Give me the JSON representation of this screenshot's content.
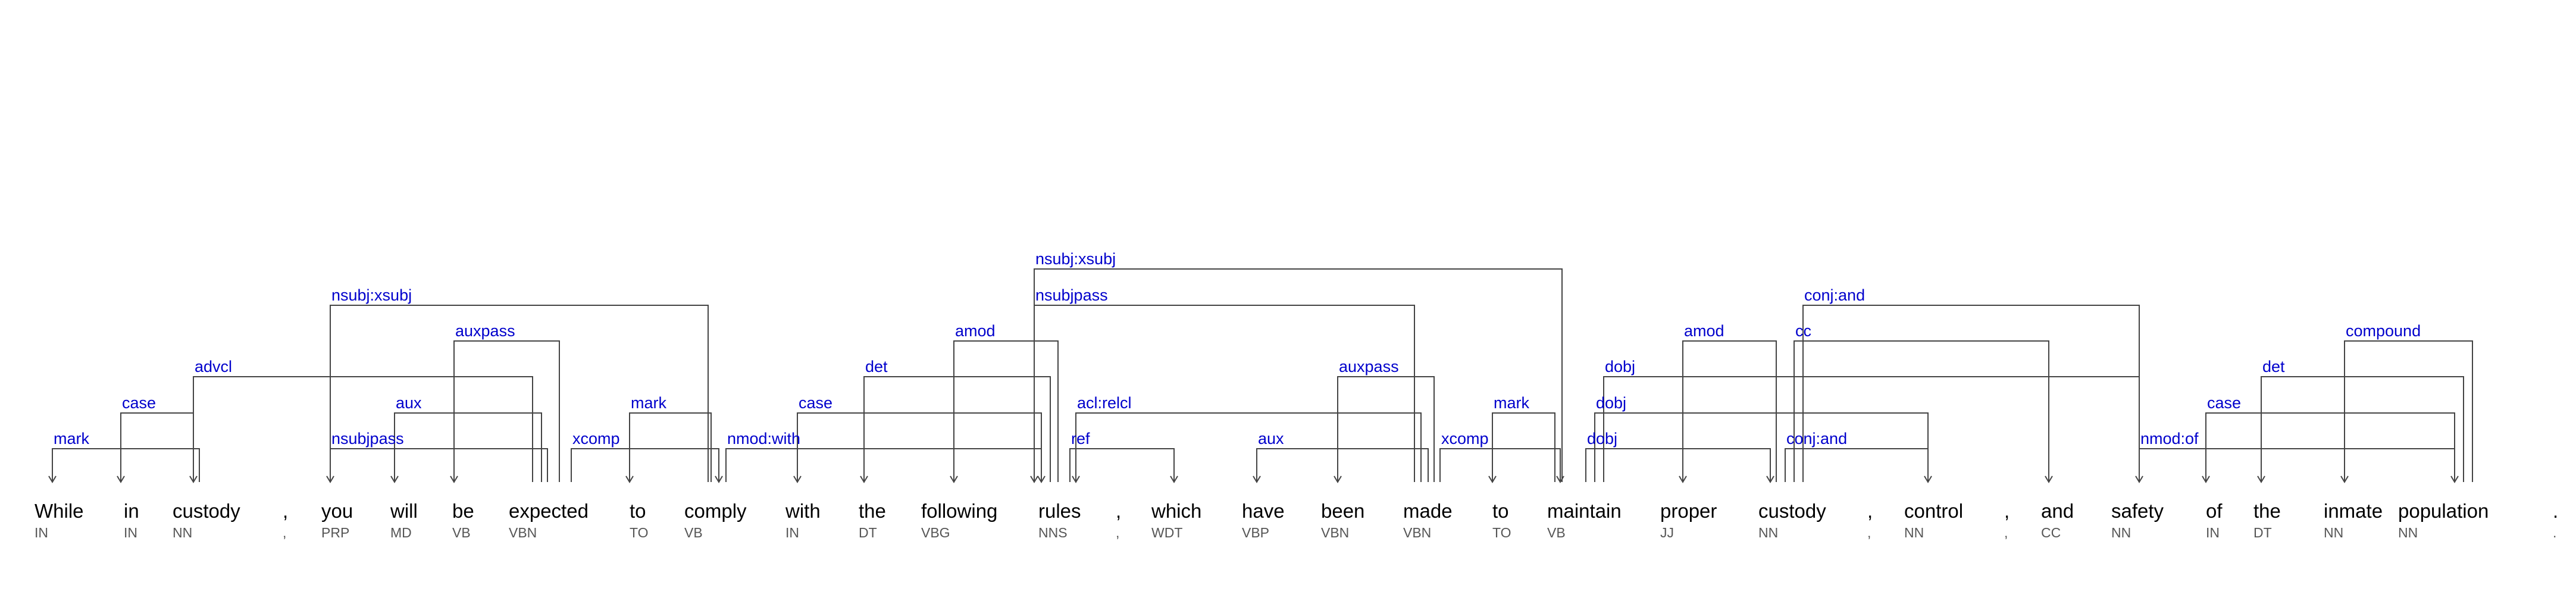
{
  "tokens": [
    {
      "word": "While",
      "tag": "IN"
    },
    {
      "word": "in",
      "tag": "IN"
    },
    {
      "word": "custody",
      "tag": "NN"
    },
    {
      "word": ",",
      "tag": ","
    },
    {
      "word": "you",
      "tag": "PRP"
    },
    {
      "word": "will",
      "tag": "MD"
    },
    {
      "word": "be",
      "tag": "VB"
    },
    {
      "word": "expected",
      "tag": "VBN"
    },
    {
      "word": "to",
      "tag": "TO"
    },
    {
      "word": "comply",
      "tag": "VB"
    },
    {
      "word": "with",
      "tag": "IN"
    },
    {
      "word": "the",
      "tag": "DT"
    },
    {
      "word": "following",
      "tag": "VBG"
    },
    {
      "word": "rules",
      "tag": "NNS"
    },
    {
      "word": ",",
      "tag": ","
    },
    {
      "word": "which",
      "tag": "WDT"
    },
    {
      "word": "have",
      "tag": "VBP"
    },
    {
      "word": "been",
      "tag": "VBN"
    },
    {
      "word": "made",
      "tag": "VBN"
    },
    {
      "word": "to",
      "tag": "TO"
    },
    {
      "word": "maintain",
      "tag": "VB"
    },
    {
      "word": "proper",
      "tag": "JJ"
    },
    {
      "word": "custody",
      "tag": "NN"
    },
    {
      "word": ",",
      "tag": ","
    },
    {
      "word": "control",
      "tag": "NN"
    },
    {
      "word": ",",
      "tag": ","
    },
    {
      "word": "and",
      "tag": "CC"
    },
    {
      "word": "safety",
      "tag": "NN"
    },
    {
      "word": "of",
      "tag": "IN"
    },
    {
      "word": "the",
      "tag": "DT"
    },
    {
      "word": "inmate",
      "tag": "NN"
    },
    {
      "word": "population",
      "tag": "NN"
    },
    {
      "word": ".",
      "tag": "."
    }
  ],
  "dependencies": [
    {
      "label": "mark",
      "head": 2,
      "dep": 0
    },
    {
      "label": "case",
      "head": 2,
      "dep": 1
    },
    {
      "label": "advcl",
      "head": 7,
      "dep": 2
    },
    {
      "label": "nsubjpass",
      "head": 7,
      "dep": 4
    },
    {
      "label": "nsubj:xsubj",
      "head": 9,
      "dep": 4
    },
    {
      "label": "aux",
      "head": 7,
      "dep": 5
    },
    {
      "label": "auxpass",
      "head": 7,
      "dep": 6
    },
    {
      "label": "xcomp",
      "head": 7,
      "dep": 9
    },
    {
      "label": "mark",
      "head": 9,
      "dep": 8
    },
    {
      "label": "nmod:with",
      "head": 9,
      "dep": 13
    },
    {
      "label": "case",
      "head": 13,
      "dep": 10
    },
    {
      "label": "det",
      "head": 13,
      "dep": 11
    },
    {
      "label": "amod",
      "head": 13,
      "dep": 12
    },
    {
      "label": "nsubjpass",
      "head": 18,
      "dep": 13
    },
    {
      "label": "nsubj:xsubj",
      "head": 20,
      "dep": 13
    },
    {
      "label": "acl:relcl",
      "head": 13,
      "dep": 18
    },
    {
      "label": "ref",
      "head": 13,
      "dep": 15
    },
    {
      "label": "aux",
      "head": 18,
      "dep": 16
    },
    {
      "label": "auxpass",
      "head": 18,
      "dep": 17
    },
    {
      "label": "xcomp",
      "head": 18,
      "dep": 20
    },
    {
      "label": "mark",
      "head": 20,
      "dep": 19
    },
    {
      "label": "dobj",
      "head": 20,
      "dep": 22
    },
    {
      "label": "dobj",
      "head": 20,
      "dep": 24
    },
    {
      "label": "dobj",
      "head": 20,
      "dep": 27
    },
    {
      "label": "amod",
      "head": 22,
      "dep": 21
    },
    {
      "label": "conj:and",
      "head": 22,
      "dep": 24
    },
    {
      "label": "cc",
      "head": 22,
      "dep": 26
    },
    {
      "label": "conj:and",
      "head": 22,
      "dep": 27
    },
    {
      "label": "nmod:of",
      "head": 27,
      "dep": 31
    },
    {
      "label": "case",
      "head": 31,
      "dep": 28
    },
    {
      "label": "det",
      "head": 31,
      "dep": 29
    },
    {
      "label": "compound",
      "head": 31,
      "dep": 30
    }
  ]
}
